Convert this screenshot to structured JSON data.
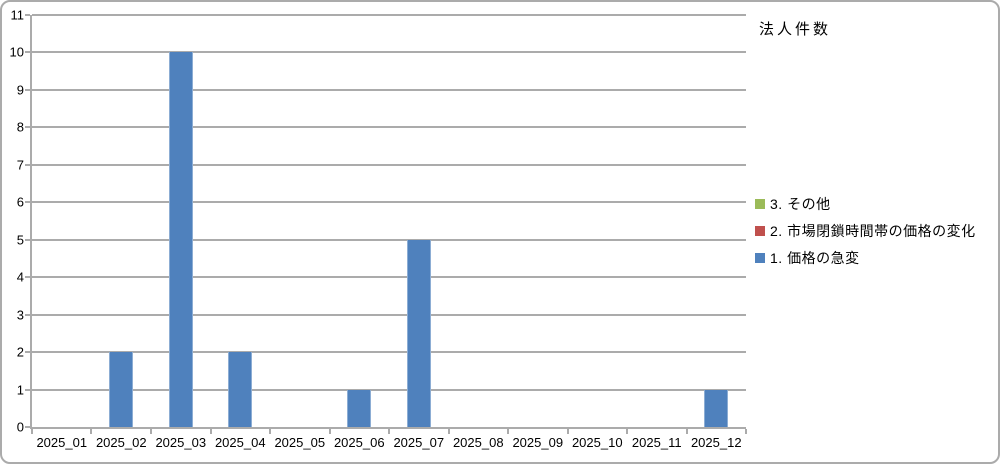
{
  "chart": {
    "title": "法人件数"
  },
  "chart_data": {
    "type": "bar",
    "title": "法人件数",
    "categories": [
      "2025_01",
      "2025_02",
      "2025_03",
      "2025_04",
      "2025_05",
      "2025_06",
      "2025_07",
      "2025_08",
      "2025_09",
      "2025_10",
      "2025_11",
      "2025_12"
    ],
    "series": [
      {
        "name": "1. 価格の急変",
        "color": "#4F81BD",
        "values": [
          0,
          2,
          10,
          2,
          0,
          1,
          5,
          0,
          0,
          0,
          0,
          1
        ]
      },
      {
        "name": "2. 市場閉鎖時間帯の価格の変化",
        "color": "#C0504D",
        "values": [
          0,
          0,
          0,
          0,
          0,
          0,
          0,
          0,
          0,
          0,
          0,
          0
        ]
      },
      {
        "name": "3. その他",
        "color": "#9BBB59",
        "values": [
          0,
          0,
          0,
          0,
          0,
          0,
          0,
          0,
          0,
          0,
          0,
          0
        ]
      }
    ],
    "xlabel": "",
    "ylabel": "",
    "ylim": [
      0,
      11
    ],
    "ytick_step": 1,
    "grid": true,
    "legend_position": "right"
  },
  "legend": {
    "items": [
      {
        "label": "3. その他",
        "color": "#9BBB59"
      },
      {
        "label": "2. 市場閉鎖時間帯の価格の変化",
        "color": "#C0504D"
      },
      {
        "label": "1. 価格の急変",
        "color": "#4F81BD"
      }
    ]
  },
  "colors": {
    "bar_blue": "#4F81BD",
    "legend_red": "#C0504D",
    "legend_green": "#9BBB59",
    "gridline": "#ABABAB",
    "border": "#ABABAB",
    "text": "#000000"
  }
}
